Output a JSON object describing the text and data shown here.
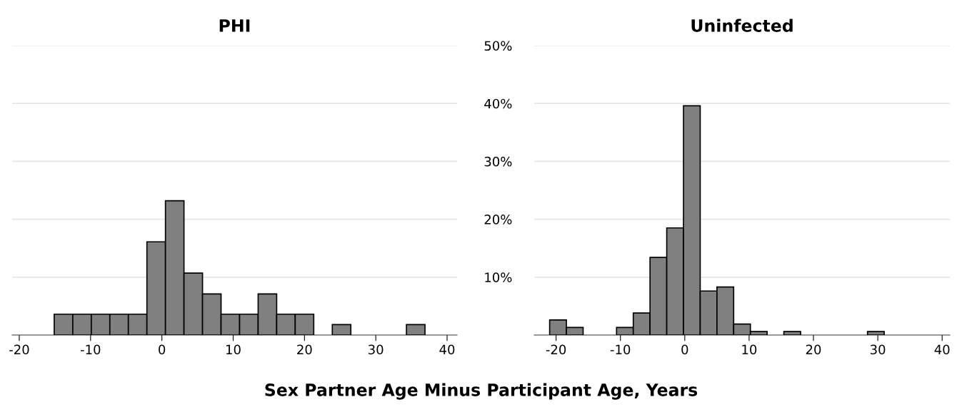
{
  "chart_data": [
    {
      "type": "histogram",
      "title": "PHI",
      "xlabel": "Sex Partner Age Minus Participant Age, Years",
      "bins": [
        -15.1,
        -12.5,
        -9.9,
        -7.3,
        -4.7,
        -2.1,
        0.5,
        3.1,
        5.7,
        8.3,
        10.9,
        13.5,
        16.1,
        18.7,
        21.3,
        23.9,
        26.5,
        29.1,
        31.7,
        34.3,
        36.9
      ],
      "values": [
        3.6,
        3.6,
        3.6,
        3.6,
        3.6,
        16.1,
        23.2,
        10.7,
        7.1,
        3.6,
        3.6,
        7.1,
        3.6,
        3.6,
        0,
        1.8,
        0,
        0,
        0,
        1.8
      ],
      "color": "#808080",
      "xlim": [
        -21,
        41.4
      ],
      "xticks": [
        -20,
        -10,
        0,
        10,
        20,
        30,
        40
      ],
      "ylim": [
        0,
        50
      ],
      "yticks": [
        {
          "value": 10,
          "label": null
        },
        {
          "value": 20,
          "label": null
        },
        {
          "value": 30,
          "label": null
        },
        {
          "value": 40,
          "label": null
        },
        {
          "value": 50,
          "label": null
        }
      ],
      "grid": "y",
      "tick_labels": "x"
    },
    {
      "type": "histogram",
      "title": "Uninfected",
      "bins": [
        -21.0,
        -18.4,
        -15.8,
        -13.2,
        -10.6,
        -8.0,
        -5.4,
        -2.8,
        -0.2,
        2.4,
        5.0,
        7.6,
        10.2,
        12.8,
        15.4,
        18.0,
        20.6,
        23.2,
        25.8,
        28.4,
        31.0
      ],
      "values": [
        2.6,
        1.3,
        0,
        0,
        1.3,
        3.8,
        13.4,
        18.5,
        39.6,
        7.6,
        8.3,
        1.9,
        0.6,
        0,
        0.6,
        0,
        0,
        0,
        0,
        0.6
      ],
      "color": "#808080",
      "xlim": [
        -23.4,
        41.2
      ],
      "xticks": [
        -20,
        -10,
        0,
        10,
        20,
        30,
        40
      ],
      "ylim": [
        0,
        50
      ],
      "yticks": [
        {
          "value": 10,
          "label": "10%"
        },
        {
          "value": 20,
          "label": "20%"
        },
        {
          "value": 30,
          "label": "30%"
        },
        {
          "value": 40,
          "label": "40%"
        },
        {
          "value": 50,
          "label": "50%"
        }
      ],
      "grid": "y"
    }
  ]
}
